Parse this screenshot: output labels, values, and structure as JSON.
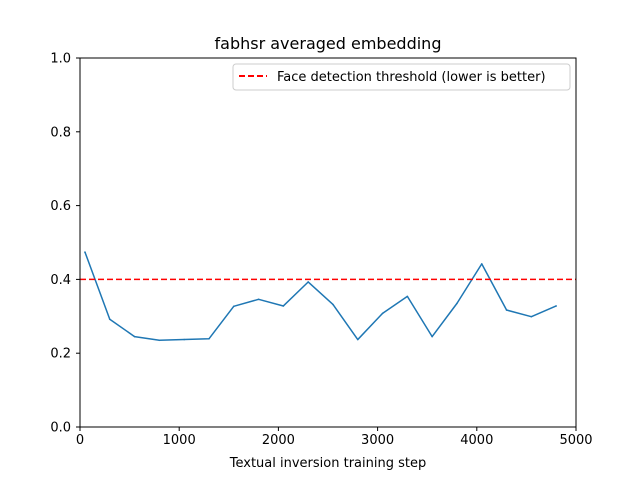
{
  "chart_data": {
    "type": "line",
    "title": "fabhsr averaged embedding",
    "xlabel": "Textual inversion training step",
    "ylabel": "",
    "xlim": [
      0,
      5000
    ],
    "ylim": [
      0,
      1.0
    ],
    "x_ticks": [
      0,
      1000,
      2000,
      3000,
      4000,
      5000
    ],
    "x_tick_labels": [
      "0",
      "1000",
      "2000",
      "3000",
      "4000",
      "5000"
    ],
    "y_ticks": [
      0,
      0.2,
      0.4,
      0.6,
      0.8,
      1.0
    ],
    "y_tick_labels": [
      "0.0",
      "0.2",
      "0.4",
      "0.6",
      "0.8",
      "1.0"
    ],
    "grid": false,
    "legend_position": "top-right",
    "series": [
      {
        "color": "#1f77b4",
        "x": [
          50,
          300,
          550,
          800,
          1050,
          1300,
          1550,
          1800,
          2050,
          2300,
          2550,
          2800,
          3050,
          3300,
          3550,
          3800,
          4050,
          4300,
          4550,
          4800
        ],
        "y": [
          0.474,
          0.292,
          0.245,
          0.235,
          0.237,
          0.239,
          0.327,
          0.346,
          0.328,
          0.393,
          0.332,
          0.237,
          0.308,
          0.354,
          0.245,
          0.335,
          0.442,
          0.317,
          0.299,
          0.328
        ]
      }
    ],
    "reference_lines": [
      {
        "name": "Face detection threshold (lower is better)",
        "y": 0.4,
        "color": "#ff0000",
        "style": "dashed"
      }
    ]
  }
}
